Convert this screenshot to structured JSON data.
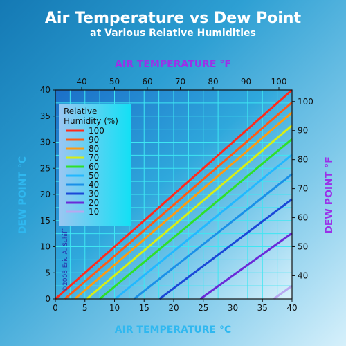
{
  "header": {
    "title": "Air Temperature vs Dew Point",
    "subtitle": "at Various Relative Humidities"
  },
  "chart_data": {
    "type": "line",
    "title": "Air Temperature vs Dew Point",
    "subtitle": "at Various Relative Humidities",
    "xlabel": "AIR TEMPERATURE °C",
    "ylabel": "DEW POINT °C",
    "x2label": "AIR TEMPERATURE °F",
    "y2label": "DEW POINT °F",
    "xlim": [
      0,
      40
    ],
    "ylim": [
      0,
      40
    ],
    "x2lim": [
      32,
      104
    ],
    "y2lim": [
      32,
      104
    ],
    "x_ticks": [
      0,
      5,
      10,
      15,
      20,
      25,
      30,
      35,
      40
    ],
    "y_ticks": [
      0,
      5,
      10,
      15,
      20,
      25,
      30,
      35,
      40
    ],
    "x2_ticks": [
      40,
      50,
      60,
      70,
      80,
      90,
      100
    ],
    "y2_ticks": [
      40,
      50,
      60,
      70,
      80,
      90,
      100
    ],
    "grid": true,
    "legend": {
      "title": "Relative Humidity (%)",
      "position": "top-left"
    },
    "copyright": "©2008 Eric A. Schiff",
    "series": [
      {
        "name": "100",
        "color": "#ff2a1a",
        "x": [
          0,
          40
        ],
        "y": [
          0,
          40
        ]
      },
      {
        "name": "90",
        "color": "#ff5a14",
        "x": [
          1.6,
          40
        ],
        "y": [
          0,
          37.6
        ]
      },
      {
        "name": "80",
        "color": "#ff9a10",
        "x": [
          3.3,
          40
        ],
        "y": [
          0,
          35.7
        ]
      },
      {
        "name": "70",
        "color": "#d8ee14",
        "x": [
          5.3,
          40
        ],
        "y": [
          0,
          33.2
        ]
      },
      {
        "name": "60",
        "color": "#2ee02a",
        "x": [
          7.5,
          40
        ],
        "y": [
          0,
          30.6
        ]
      },
      {
        "name": "50",
        "color": "#22b8ff",
        "x": [
          10.1,
          40
        ],
        "y": [
          0,
          27.6
        ]
      },
      {
        "name": "40",
        "color": "#1a90e8",
        "x": [
          13.3,
          40
        ],
        "y": [
          0,
          23.9
        ]
      },
      {
        "name": "30",
        "color": "#1a48d8",
        "x": [
          17.6,
          40
        ],
        "y": [
          0,
          19.1
        ]
      },
      {
        "name": "20",
        "color": "#6a2ad8",
        "x": [
          24.5,
          40
        ],
        "y": [
          0,
          12.6
        ]
      },
      {
        "name": "10",
        "color": "#b8a8f0",
        "x": [
          36.9,
          40
        ],
        "y": [
          0,
          2.5
        ]
      }
    ]
  }
}
